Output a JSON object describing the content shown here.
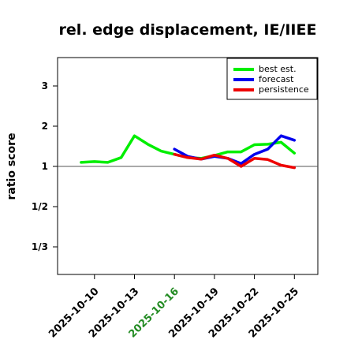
{
  "chart_data": {
    "type": "line",
    "title": "rel. edge displacement, IE/IIEE",
    "xlabel": "",
    "ylabel": "ratio score",
    "x_ticks": [
      "2025-10-10",
      "2025-10-13",
      "2025-10-16",
      "2025-10-19",
      "2025-10-22",
      "2025-10-25"
    ],
    "highlighted_x_tick": "2025-10-16",
    "highlight_color": "#228b22",
    "y_ticks": [
      {
        "value": 3,
        "label": "3"
      },
      {
        "value": 2,
        "label": "2"
      },
      {
        "value": 1,
        "label": "1"
      },
      {
        "value": 0.5,
        "label": "1/2"
      },
      {
        "value": 0.3333,
        "label": "1/3"
      }
    ],
    "y_scale": "log-symmetric ratio",
    "xlim": [
      "2025-10-08",
      "2025-10-26"
    ],
    "reference_line": 1,
    "legend_position": "top-right",
    "series": [
      {
        "name": "best est.",
        "color": "#00ee00",
        "x": [
          "2025-10-09",
          "2025-10-10",
          "2025-10-11",
          "2025-10-12",
          "2025-10-13",
          "2025-10-14",
          "2025-10-15",
          "2025-10-16",
          "2025-10-17",
          "2025-10-18",
          "2025-10-19",
          "2025-10-20",
          "2025-10-21",
          "2025-10-22",
          "2025-10-23",
          "2025-10-24",
          "2025-10-25"
        ],
        "y": [
          1.1,
          1.12,
          1.1,
          1.22,
          1.76,
          1.55,
          1.38,
          1.3,
          1.22,
          1.2,
          1.27,
          1.36,
          1.36,
          1.54,
          1.55,
          1.6,
          1.33
        ]
      },
      {
        "name": "forecast",
        "color": "#0000ee",
        "x": [
          "2025-10-16",
          "2025-10-17",
          "2025-10-18",
          "2025-10-19",
          "2025-10-20",
          "2025-10-21",
          "2025-10-22",
          "2025-10-23",
          "2025-10-24",
          "2025-10-25"
        ],
        "y": [
          1.43,
          1.25,
          1.18,
          1.25,
          1.2,
          1.07,
          1.3,
          1.43,
          1.76,
          1.65
        ]
      },
      {
        "name": "persistence",
        "color": "#ee0000",
        "x": [
          "2025-10-16",
          "2025-10-17",
          "2025-10-18",
          "2025-10-19",
          "2025-10-20",
          "2025-10-21",
          "2025-10-22",
          "2025-10-23",
          "2025-10-24",
          "2025-10-25"
        ],
        "y": [
          1.3,
          1.22,
          1.18,
          1.28,
          1.2,
          1.0,
          1.2,
          1.17,
          1.03,
          0.97
        ]
      }
    ]
  }
}
